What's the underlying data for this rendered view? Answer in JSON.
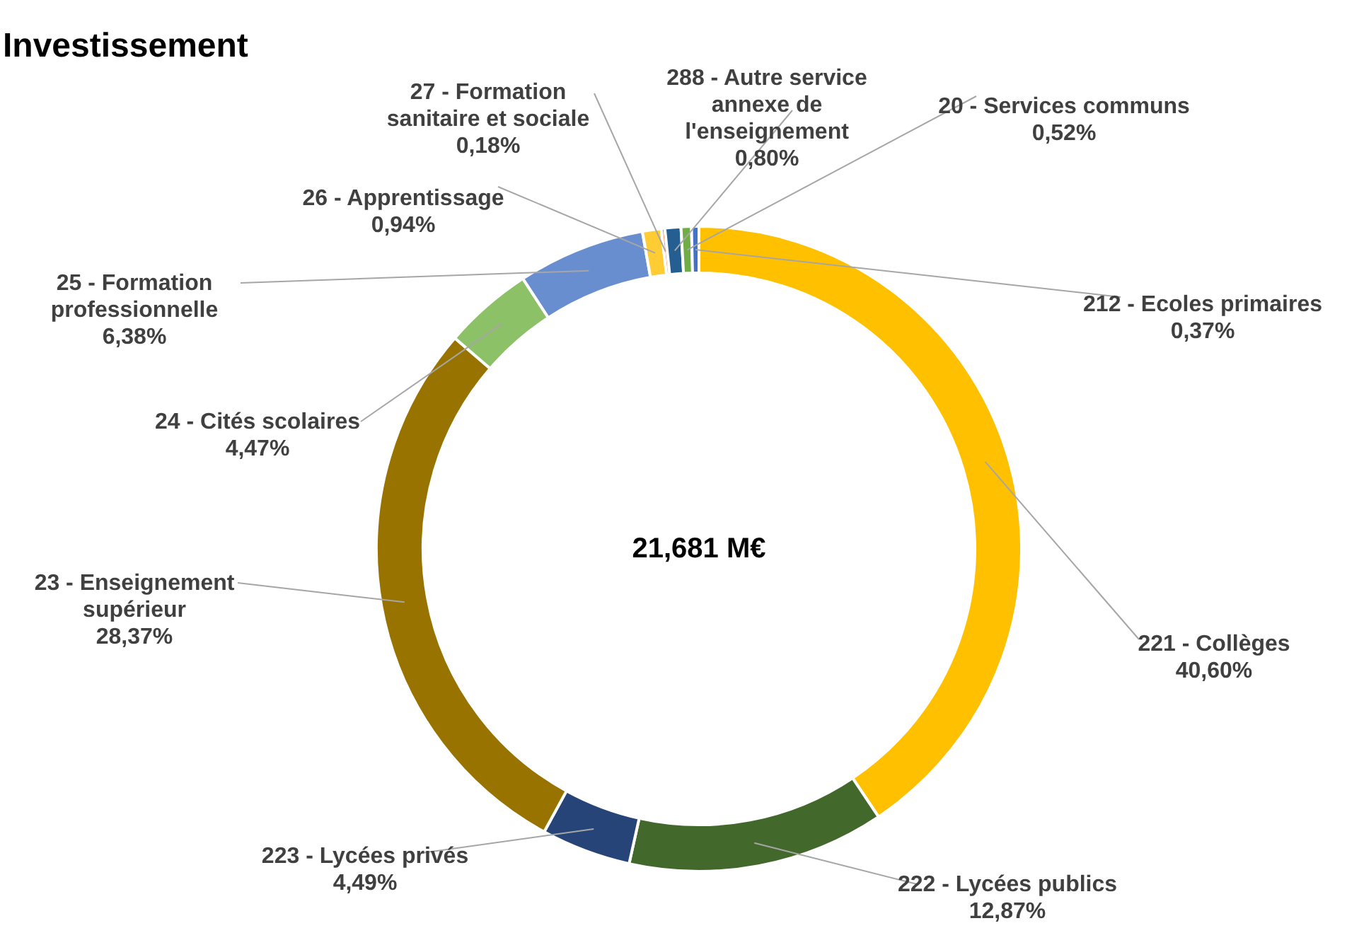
{
  "chart_data": {
    "type": "donut",
    "title": "Investissement",
    "categories": [
      "221 - Collèges",
      "222 - Lycées publics",
      "223 - Lycées privés",
      "23 - Enseignement supérieur",
      "24 - Cités scolaires",
      "25 - Formation professionnelle",
      "26 - Apprentissage",
      "27 - Formation sanitaire et sociale",
      "288 - Autre service annexe de l'enseignement",
      "20 - Services communs",
      "212 - Ecoles primaires"
    ],
    "values": [
      40.6,
      12.87,
      4.49,
      28.37,
      4.47,
      6.38,
      0.94,
      0.18,
      0.8,
      0.52,
      0.37
    ],
    "value_labels": [
      "40,60%",
      "12,87%",
      "4,49%",
      "28,37%",
      "4,47%",
      "6,38%",
      "0,94%",
      "0,18%",
      "0,80%",
      "0,52%",
      "0,37%"
    ],
    "colors": [
      "#ffc000",
      "#43682b",
      "#264478",
      "#997300",
      "#8cc168",
      "#698ed0",
      "#ffcd33",
      "#f1975a",
      "#255e91",
      "#70ad47",
      "#4472c4"
    ],
    "annotations": [
      "21,681 M€"
    ]
  }
}
